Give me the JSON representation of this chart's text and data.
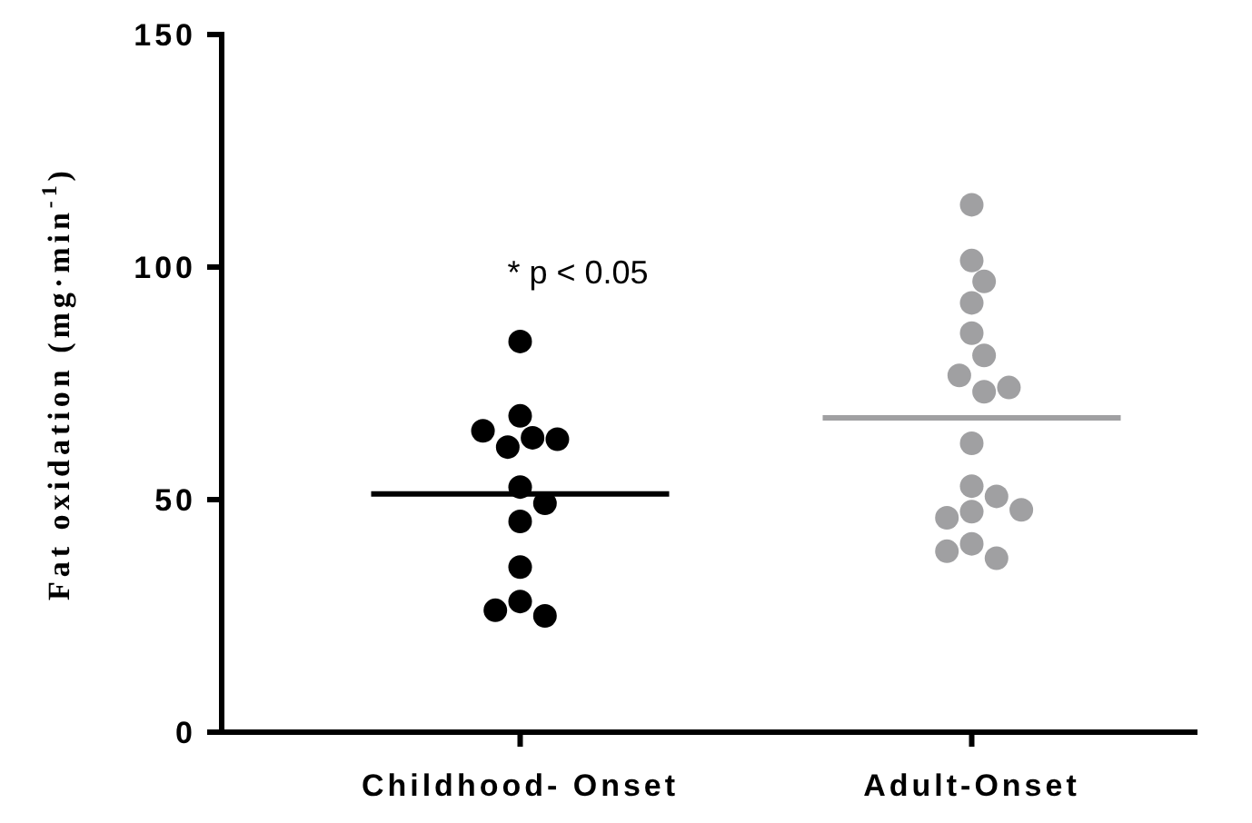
{
  "chart_data": {
    "type": "scatter",
    "categories": [
      "Childhood- Onset",
      "Adult-Onset"
    ],
    "ylabel": "Fat oxidation (mg·min$^{-1}$)",
    "ylim": [
      0,
      150
    ],
    "yticks": [
      0,
      50,
      100,
      150
    ],
    "grid": false,
    "marker": "circle",
    "annotations": [
      "* p < 0.05"
    ],
    "ref_lines": [
      {
        "axis": "y",
        "value": 51.2,
        "color": "#000000"
      },
      {
        "axis": "y",
        "value": 67.6,
        "color": "#a0a0a2"
      }
    ],
    "series": [
      {
        "color": "#000000",
        "x": [
          "Childhood- Onset",
          "Childhood- Onset",
          "Childhood- Onset",
          "Childhood- Onset",
          "Childhood- Onset",
          "Childhood- Onset",
          "Childhood- Onset",
          "Childhood- Onset",
          "Childhood- Onset",
          "Childhood- Onset",
          "Childhood- Onset",
          "Childhood- Onset",
          "Childhood- Onset"
        ],
        "values": [
          84,
          68,
          63.3,
          61.3,
          63,
          64.8,
          52.7,
          49.2,
          45.3,
          35.5,
          28.1,
          25,
          26.2
        ]
      },
      {
        "color": "#a0a0a2",
        "x": [
          "Adult-Onset",
          "Adult-Onset",
          "Adult-Onset",
          "Adult-Onset",
          "Adult-Onset",
          "Adult-Onset",
          "Adult-Onset",
          "Adult-Onset",
          "Adult-Onset",
          "Adult-Onset",
          "Adult-Onset",
          "Adult-Onset",
          "Adult-Onset",
          "Adult-Onset",
          "Adult-Onset",
          "Adult-Onset",
          "Adult-Onset",
          "Adult-Onset"
        ],
        "values": [
          113.4,
          101.4,
          96.9,
          92.3,
          85.8,
          81,
          76.7,
          73.2,
          74.1,
          62.1,
          52.9,
          50.7,
          47.4,
          46.1,
          47.8,
          40.5,
          37.4,
          38.9
        ]
      }
    ]
  }
}
